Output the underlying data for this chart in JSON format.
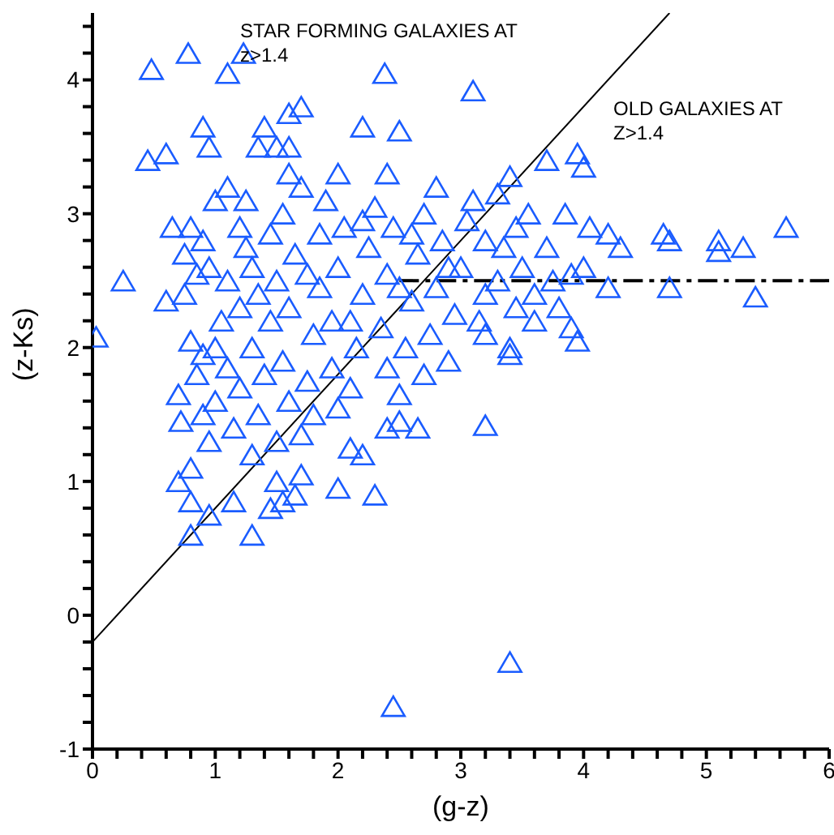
{
  "chart_data": {
    "type": "scatter",
    "xlabel": "(g-z)",
    "ylabel": "(z-Ks)",
    "annotations": [
      "STAR FORMING GALAXIES AT\nz>1.4",
      "OLD GALAXIES AT\nZ>1.4"
    ],
    "xlim": [
      0,
      6
    ],
    "ylim": [
      -1,
      4.5
    ],
    "xticks": [
      0,
      {
        "value": 0.2,
        "label": null
      },
      {
        "value": 0.4,
        "label": null
      },
      {
        "value": 0.6,
        "label": null
      },
      {
        "value": 0.8,
        "label": null
      },
      1,
      {
        "value": 1.2,
        "label": null
      },
      {
        "value": 1.4,
        "label": null
      },
      {
        "value": 1.6,
        "label": null
      },
      {
        "value": 1.8,
        "label": null
      },
      2,
      {
        "value": 2.2,
        "label": null
      },
      {
        "value": 2.4,
        "label": null
      },
      {
        "value": 2.6,
        "label": null
      },
      {
        "value": 2.8,
        "label": null
      },
      3,
      {
        "value": 3.2,
        "label": null
      },
      {
        "value": 3.4,
        "label": null
      },
      {
        "value": 3.6,
        "label": null
      },
      {
        "value": 3.8,
        "label": null
      },
      4,
      {
        "value": 4.2,
        "label": null
      },
      {
        "value": 4.4,
        "label": null
      },
      {
        "value": 4.6,
        "label": null
      },
      {
        "value": 4.8,
        "label": null
      },
      5,
      {
        "value": 5.2,
        "label": null
      },
      {
        "value": 5.4,
        "label": null
      },
      {
        "value": 5.6,
        "label": null
      },
      {
        "value": 5.8,
        "label": null
      },
      6
    ],
    "yticks": [
      -1,
      {
        "value": -0.8,
        "label": null
      },
      {
        "value": -0.6,
        "label": null
      },
      {
        "value": -0.4,
        "label": null
      },
      {
        "value": -0.2,
        "label": null
      },
      0,
      {
        "value": 0.2,
        "label": null
      },
      {
        "value": 0.4,
        "label": null
      },
      {
        "value": 0.6,
        "label": null
      },
      {
        "value": 0.8,
        "label": null
      },
      1,
      {
        "value": 1.2,
        "label": null
      },
      {
        "value": 1.4,
        "label": null
      },
      {
        "value": 1.6,
        "label": null
      },
      {
        "value": 1.8,
        "label": null
      },
      2,
      {
        "value": 2.2,
        "label": null
      },
      {
        "value": 2.4,
        "label": null
      },
      {
        "value": 2.6,
        "label": null
      },
      {
        "value": 2.8,
        "label": null
      },
      3,
      {
        "value": 3.2,
        "label": null
      },
      {
        "value": 3.4,
        "label": null
      },
      {
        "value": 3.6,
        "label": null
      },
      {
        "value": 3.8,
        "label": null
      },
      4,
      {
        "value": 4.2,
        "label": null
      },
      {
        "value": 4.4,
        "label": null
      }
    ],
    "grid": false,
    "legend": false,
    "series": [
      {
        "color": "#1a5cff",
        "marker": "triangle",
        "x": [
          0.03,
          0.25,
          0.48,
          0.78,
          1.1,
          1.23,
          2.38,
          3.1,
          1.6,
          1.7,
          1.4,
          2.2,
          2.5,
          0.9,
          0.95,
          0.45,
          0.6,
          1.5,
          1.35,
          1.6,
          3.7,
          3.95,
          4.0,
          3.4,
          3.3,
          3.55,
          3.85,
          4.05,
          4.2,
          4.3,
          4.65,
          4.7,
          5.1,
          5.1,
          5.3,
          5.65,
          4.2,
          4.7,
          5.4,
          3.9,
          4.0,
          3.9,
          3.95,
          3.4,
          3.4,
          3.2,
          3.2,
          3.4,
          2.45,
          2.3,
          2.0,
          1.3,
          0.8,
          0.95,
          0.8,
          0.7,
          0.8,
          1.15,
          1.45,
          1.55,
          1.65,
          1.7,
          1.5,
          2.4,
          2.5,
          2.65,
          2.1,
          2.2,
          0.72,
          0.9,
          0.6,
          0.75,
          0.65,
          0.8,
          0.75,
          0.9,
          0.85,
          0.8,
          0.9,
          0.7,
          0.85,
          0.95,
          1.0,
          1.05,
          1.1,
          1.0,
          1.1,
          1.2,
          1.25,
          1.3,
          1.2,
          1.3,
          1.2,
          1.15,
          1.3,
          1.35,
          1.4,
          1.45,
          1.5,
          1.45,
          1.55,
          1.6,
          1.7,
          1.65,
          1.6,
          1.55,
          1.6,
          1.7,
          1.75,
          1.8,
          1.85,
          1.85,
          1.9,
          2.0,
          2.05,
          2.0,
          1.95,
          1.95,
          2.0,
          2.1,
          2.15,
          2.2,
          2.25,
          2.3,
          2.4,
          2.45,
          2.4,
          2.35,
          2.4,
          2.5,
          2.55,
          2.6,
          2.65,
          2.7,
          2.8,
          2.85,
          2.8,
          2.75,
          2.7,
          2.9,
          2.95,
          3.0,
          3.05,
          3.1,
          3.2,
          3.2,
          3.15,
          3.3,
          3.35,
          3.45,
          3.5,
          3.45,
          3.6,
          3.7,
          3.75,
          3.6,
          3.8,
          1.0,
          1.1,
          0.95,
          1.35,
          1.75,
          2.1,
          2.5,
          2.9,
          1.8,
          1.5,
          1.25,
          2.2,
          2.6
        ],
        "values": [
          2.08,
          2.5,
          4.08,
          4.2,
          4.05,
          4.2,
          4.05,
          3.92,
          3.75,
          3.8,
          3.65,
          3.65,
          3.62,
          3.65,
          3.5,
          3.4,
          3.45,
          3.5,
          3.5,
          3.5,
          3.4,
          3.45,
          3.35,
          3.28,
          3.15,
          3.0,
          3.0,
          2.9,
          2.85,
          2.75,
          2.85,
          2.8,
          2.8,
          2.72,
          2.75,
          2.9,
          2.45,
          2.45,
          2.38,
          2.55,
          2.6,
          2.15,
          2.05,
          2.0,
          1.95,
          2.1,
          1.42,
          -0.35,
          -0.68,
          0.9,
          0.95,
          0.6,
          0.6,
          0.75,
          0.85,
          1.0,
          1.1,
          0.85,
          0.8,
          0.85,
          0.9,
          1.05,
          1.0,
          1.4,
          1.45,
          1.4,
          1.25,
          1.2,
          1.45,
          1.5,
          2.35,
          2.4,
          2.9,
          2.9,
          2.7,
          2.8,
          2.55,
          2.05,
          1.95,
          1.65,
          1.8,
          1.3,
          1.6,
          2.2,
          2.5,
          3.1,
          3.2,
          2.9,
          3.1,
          2.6,
          2.3,
          2.0,
          1.7,
          1.4,
          1.2,
          1.5,
          1.8,
          2.2,
          2.5,
          2.85,
          3.0,
          3.3,
          3.2,
          2.7,
          2.3,
          1.9,
          1.6,
          1.35,
          1.75,
          2.1,
          2.45,
          2.85,
          3.1,
          3.3,
          2.9,
          2.6,
          2.2,
          1.85,
          1.55,
          1.7,
          2.0,
          2.4,
          2.75,
          3.05,
          3.3,
          2.9,
          2.55,
          2.15,
          1.85,
          1.65,
          2.0,
          2.35,
          2.7,
          3.0,
          3.2,
          2.8,
          2.45,
          2.1,
          1.8,
          1.9,
          2.25,
          2.6,
          2.95,
          3.1,
          2.8,
          2.4,
          2.2,
          2.5,
          2.75,
          2.9,
          2.6,
          2.3,
          2.4,
          2.75,
          2.5,
          2.2,
          2.3,
          2.0,
          1.85,
          2.6,
          2.4,
          2.55,
          2.2,
          2.45,
          2.6,
          1.5,
          1.3,
          2.75,
          2.95,
          2.85
        ]
      },
      {
        "type": "line",
        "color": "#000000",
        "marker": "none",
        "line_style": "solid",
        "x": [
          0,
          4.7
        ],
        "values": [
          -0.2,
          4.5
        ]
      },
      {
        "type": "line",
        "color": "#000000",
        "marker": "none",
        "line_style": "dashed",
        "x": [
          2.5,
          6
        ],
        "values": [
          2.5,
          2.5
        ]
      }
    ]
  }
}
